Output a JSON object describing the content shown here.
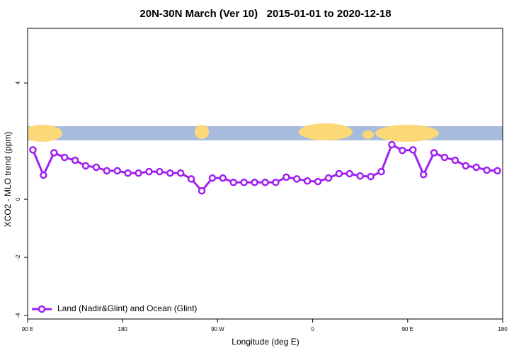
{
  "chart_data": {
    "type": "line",
    "title": "20N-30N March (Ver 10)   2015-01-01 to 2020-12-18",
    "x_label": "Longitude (deg E)",
    "y_label": "XCO2 - MLO trend (ppm)",
    "x": [
      95,
      105,
      115,
      125,
      135,
      145,
      155,
      165,
      175,
      185,
      195,
      205,
      215,
      225,
      235,
      245,
      255,
      265,
      275,
      285,
      295,
      305,
      315,
      325,
      335,
      345,
      355,
      365,
      375,
      385,
      395,
      405,
      415,
      425,
      435,
      445,
      455,
      465,
      475,
      485,
      495,
      505,
      515,
      525,
      535
    ],
    "series": [
      {
        "name": "Land (Nadir&Glint) and Ocean (Glint)",
        "color": "#a020f0",
        "values": [
          1.7,
          0.83,
          1.6,
          1.44,
          1.34,
          1.15,
          1.1,
          0.98,
          0.98,
          0.9,
          0.9,
          0.95,
          0.95,
          0.9,
          0.9,
          0.7,
          0.29,
          0.73,
          0.73,
          0.58,
          0.58,
          0.58,
          0.58,
          0.58,
          0.76,
          0.7,
          0.63,
          0.61,
          0.73,
          0.88,
          0.88,
          0.8,
          0.78,
          0.95,
          1.88,
          1.68,
          1.7,
          0.85,
          1.6,
          1.44,
          1.34,
          1.15,
          1.1,
          1.0,
          0.98
        ]
      }
    ],
    "xlim": [
      90,
      540
    ],
    "xticks": [
      {
        "value": 90,
        "label": "90 E"
      },
      180,
      {
        "value": 270,
        "label": "90 W"
      },
      {
        "value": 360,
        "label": "0"
      },
      {
        "value": 450,
        "label": "90 E"
      },
      {
        "value": 540,
        "label": "180"
      }
    ],
    "ylim": [
      -4.12,
      5.88
    ],
    "yticks": [
      -4,
      -2,
      0,
      4
    ],
    "legend": "bottom-left"
  }
}
